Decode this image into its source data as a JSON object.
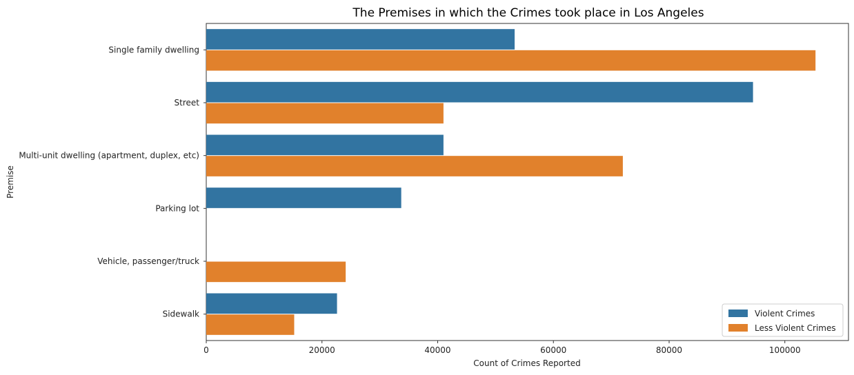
{
  "chart_data": {
    "type": "bar",
    "orientation": "horizontal",
    "title": "The Premises in which the Crimes took place in Los Angeles",
    "xlabel": "Count of Crimes Reported",
    "ylabel": "Premise",
    "xlim": [
      0,
      111000
    ],
    "xticks": [
      0,
      20000,
      40000,
      60000,
      80000,
      100000
    ],
    "grid": false,
    "legend_position": "bottom-right",
    "categories": [
      "Single family dwelling",
      "Street",
      "Multi-unit dwelling (apartment, duplex, etc)",
      "Parking lot",
      "Vehicle, passenger/truck",
      "Sidewalk"
    ],
    "series": [
      {
        "name": "Violent Crimes",
        "color": "#3274a1",
        "values": [
          53300,
          94500,
          41000,
          33700,
          0,
          22600
        ]
      },
      {
        "name": "Less Violent Crimes",
        "color": "#e1812c",
        "values": [
          105300,
          41000,
          72000,
          0,
          24100,
          15200
        ]
      }
    ]
  }
}
